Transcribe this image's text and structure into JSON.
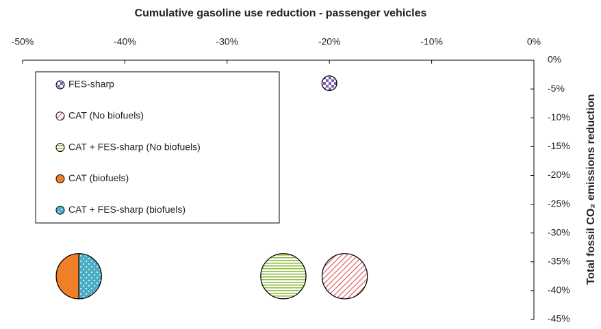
{
  "chart_data": {
    "type": "bubble",
    "title": "Cumulative gasoline use reduction - passenger vehicles",
    "y_label": "Total fossil CO₂ emissions reduction",
    "xlim": [
      -50,
      0
    ],
    "ylim": [
      -45,
      0
    ],
    "xticks": [
      {
        "value": -50,
        "label": "-50%"
      },
      {
        "value": -40,
        "label": "-40%"
      },
      {
        "value": -30,
        "label": "-30%"
      },
      {
        "value": -20,
        "label": "-20%"
      },
      {
        "value": -10,
        "label": "-10%"
      },
      {
        "value": 0,
        "label": "0%"
      }
    ],
    "yticks": [
      {
        "value": 0,
        "label": "0%"
      },
      {
        "value": -5,
        "label": "-5%"
      },
      {
        "value": -10,
        "label": "-10%"
      },
      {
        "value": -15,
        "label": "-15%"
      },
      {
        "value": -20,
        "label": "-20%"
      },
      {
        "value": -25,
        "label": "-25%"
      },
      {
        "value": -30,
        "label": "-30%"
      },
      {
        "value": -35,
        "label": "-35%"
      },
      {
        "value": -40,
        "label": "-40%"
      },
      {
        "value": -45,
        "label": "-45%"
      }
    ],
    "series": [
      {
        "name": "FES-sharp",
        "color": "#7a5fb5",
        "pattern": "checker",
        "x": [
          -20
        ],
        "values": [
          -4
        ]
      },
      {
        "name": "CAT (No biofuels)",
        "color": "#e06060",
        "pattern": "diagonal",
        "x": [
          -18.5
        ],
        "values": [
          -37.5
        ]
      },
      {
        "name": "CAT + FES-sharp (No biofuels)",
        "color": "#8fbf3f",
        "pattern": "horizontal",
        "x": [
          -24.5
        ],
        "values": [
          -37.5
        ]
      },
      {
        "name": "CAT (biofuels)",
        "color": "#f07f2a",
        "pattern": "solid",
        "x": [
          -44.5
        ],
        "values": [
          -37.5
        ]
      },
      {
        "name": "CAT + FES-sharp (biofuels)",
        "color": "#4bacc6",
        "pattern": "dots",
        "x": [
          -44.5
        ],
        "values": [
          -37.5
        ]
      }
    ]
  }
}
